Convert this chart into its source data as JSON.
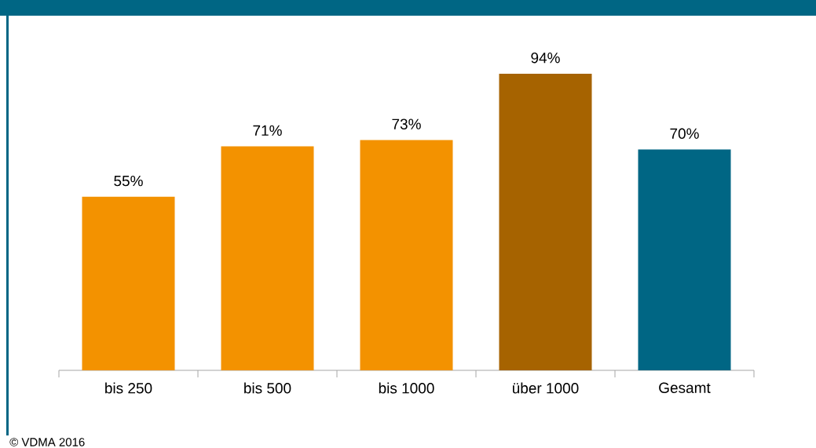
{
  "chart_data": {
    "type": "bar",
    "categories": [
      "bis 250",
      "bis 500",
      "bis 1000",
      "über 1000",
      "Gesamt"
    ],
    "values": [
      55,
      71,
      73,
      94,
      70
    ],
    "colors": [
      "#f39200",
      "#f39200",
      "#f39200",
      "#a66300",
      "#006684"
    ],
    "value_labels": [
      "55%",
      "71%",
      "73%",
      "94%",
      "70%"
    ],
    "annotations": [
      "© VDMA 2016"
    ]
  }
}
